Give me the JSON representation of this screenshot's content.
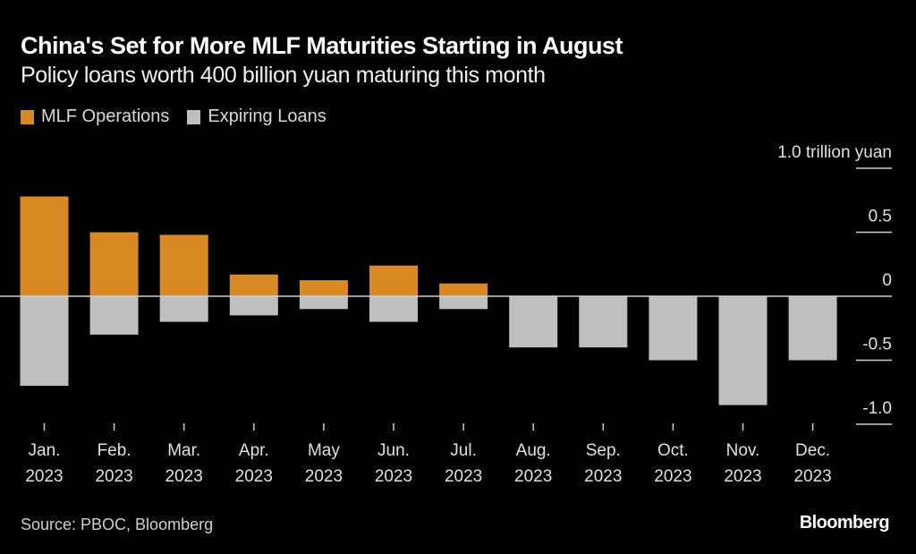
{
  "header": {
    "title": "China's Set for More MLF Maturities Starting in August",
    "subtitle": "Policy loans worth 400 billion yuan maturing this month"
  },
  "legend": [
    {
      "label": "MLF Operations",
      "color": "#DA8A24"
    },
    {
      "label": "Expiring Loans",
      "color": "#BFBFBF"
    }
  ],
  "footer": {
    "source": "Source: PBOC, Bloomberg",
    "brand": "Bloomberg"
  },
  "chart_data": {
    "type": "bar",
    "title": "China's Set for More MLF Maturities Starting in August",
    "subtitle": "Policy loans worth 400 billion yuan maturing this month",
    "xlabel": "",
    "ylabel": "trillion yuan",
    "unit_label": "1.0 trillion yuan",
    "ylim": [
      -1.0,
      1.0
    ],
    "yticks": [
      1.0,
      0.5,
      0,
      -0.5,
      -1.0
    ],
    "ytick_labels": [
      "1.0 trillion yuan",
      "0.5",
      "0",
      "-0.5",
      "-1.0"
    ],
    "y_axis_side": "right",
    "legend_position": "top-left",
    "grid": false,
    "categories": [
      [
        "Jan.",
        "2023"
      ],
      [
        "Feb.",
        "2023"
      ],
      [
        "Mar.",
        "2023"
      ],
      [
        "Apr.",
        "2023"
      ],
      [
        "May",
        "2023"
      ],
      [
        "Jun.",
        "2023"
      ],
      [
        "Jul.",
        "2023"
      ],
      [
        "Aug.",
        "2023"
      ],
      [
        "Sep.",
        "2023"
      ],
      [
        "Oct.",
        "2023"
      ],
      [
        "Nov.",
        "2023"
      ],
      [
        "Dec.",
        "2023"
      ]
    ],
    "series": [
      {
        "name": "MLF Operations",
        "color": "#DA8A24",
        "values": [
          0.78,
          0.5,
          0.48,
          0.17,
          0.125,
          0.24,
          0.1,
          null,
          null,
          null,
          null,
          null
        ]
      },
      {
        "name": "Expiring Loans",
        "color": "#BFBFBF",
        "values": [
          -0.7,
          -0.3,
          -0.2,
          -0.15,
          -0.1,
          -0.2,
          -0.1,
          -0.4,
          -0.4,
          -0.5,
          -0.85,
          -0.5
        ]
      }
    ]
  }
}
